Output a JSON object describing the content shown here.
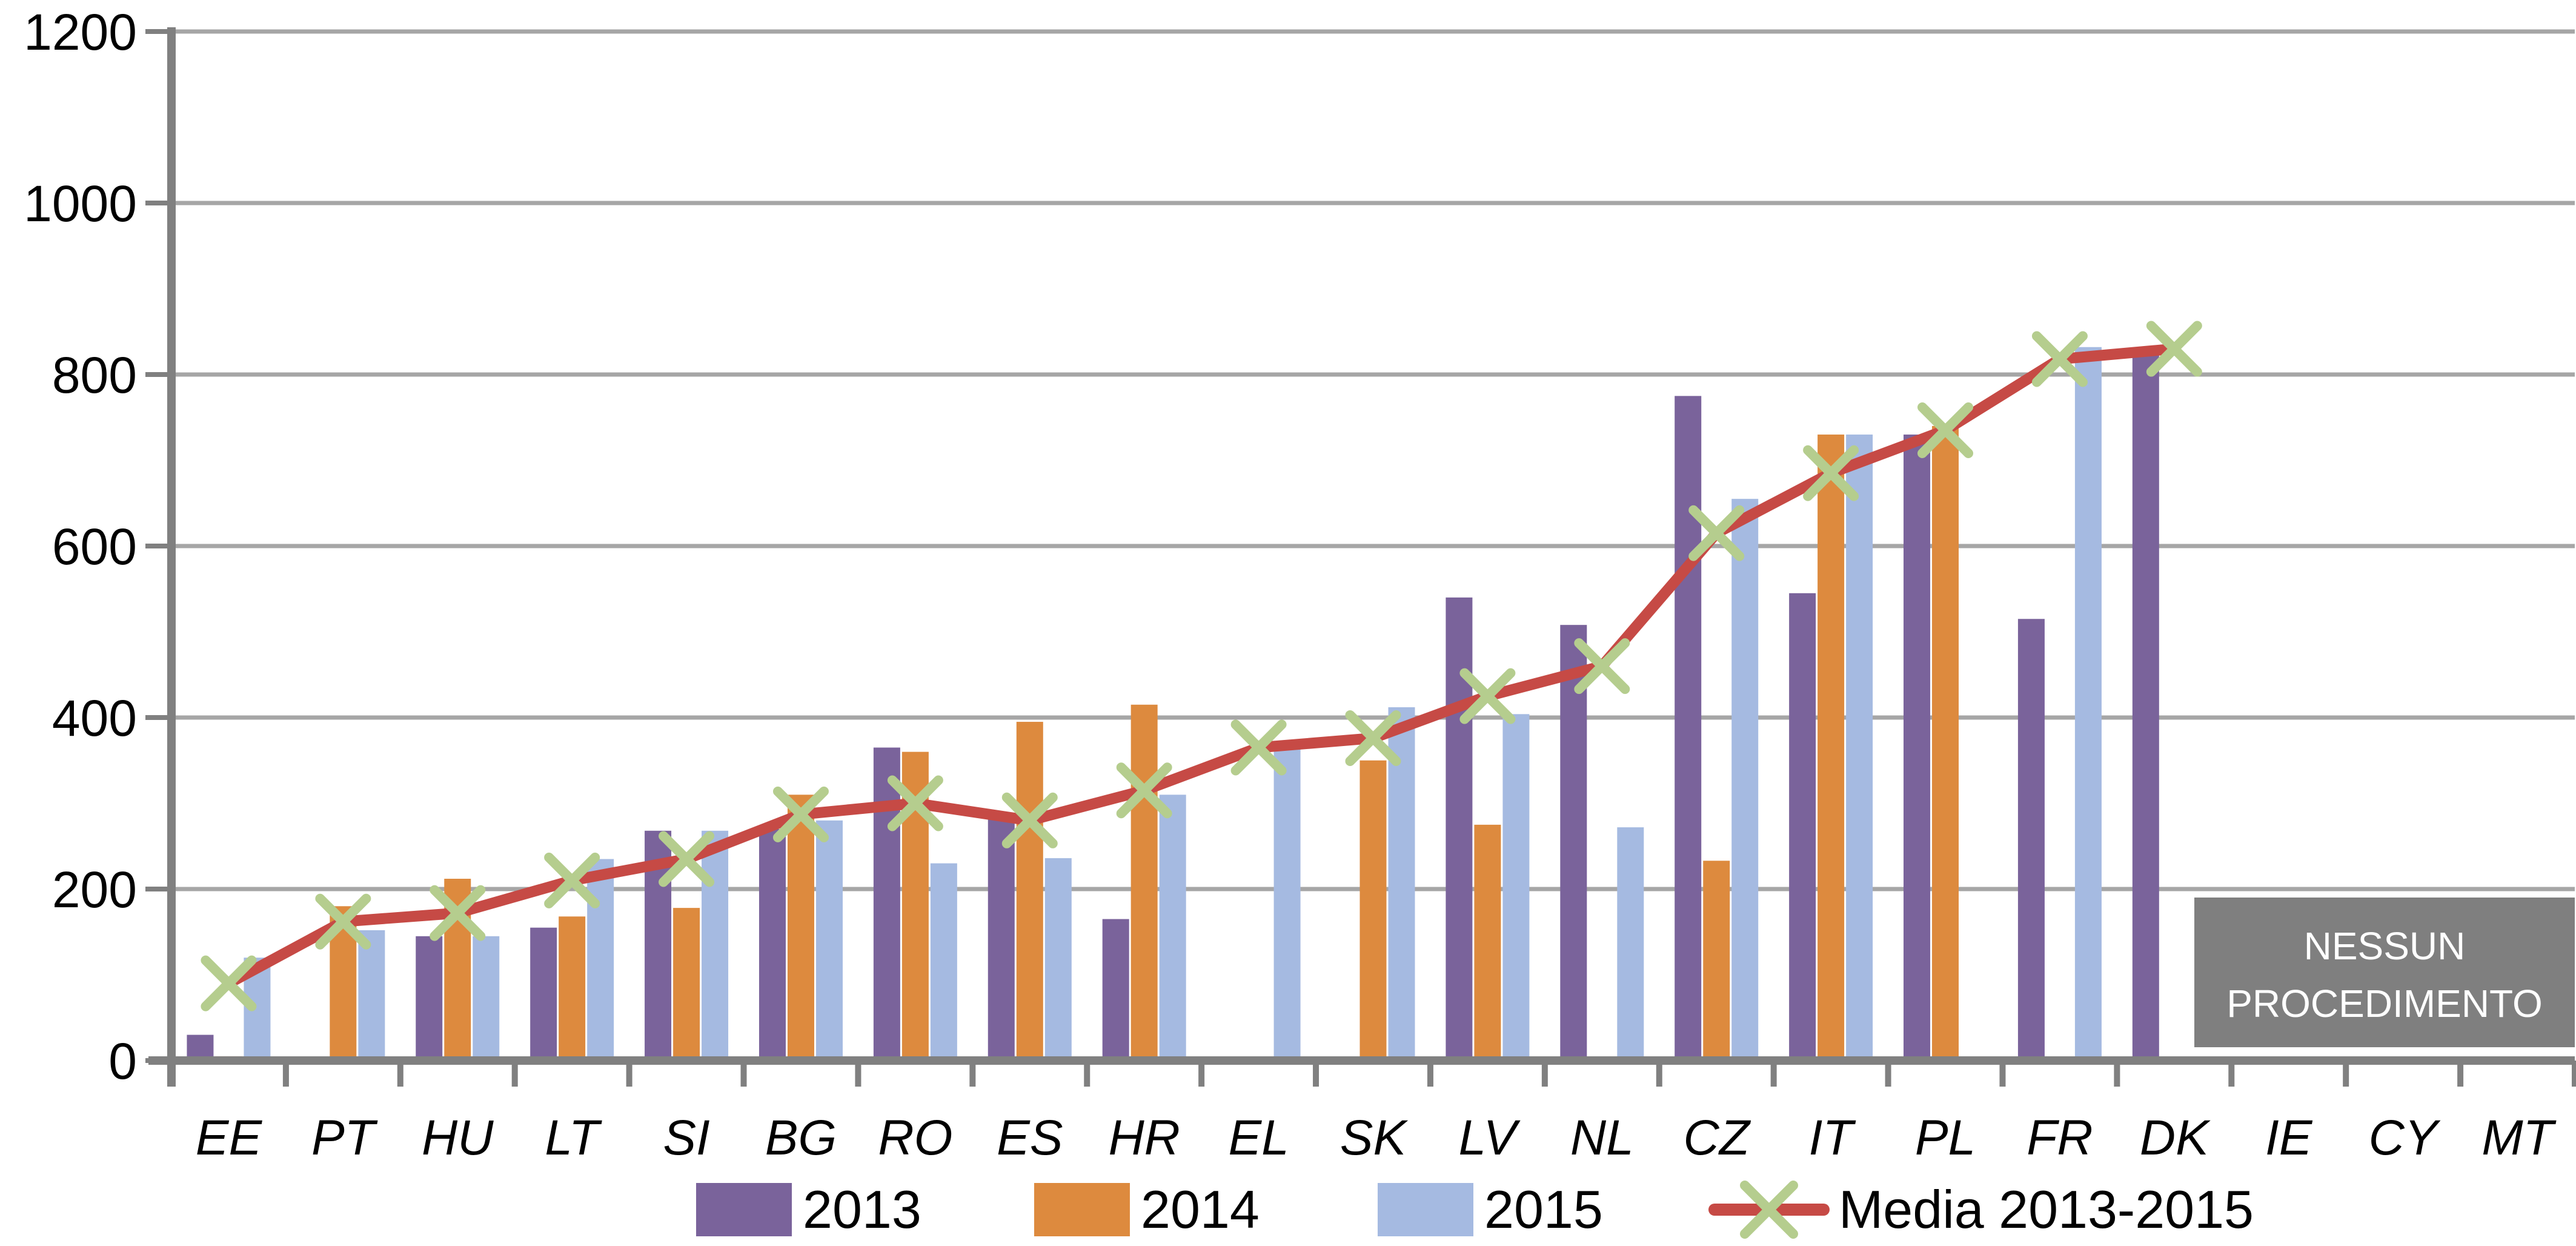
{
  "chart_data": {
    "type": "bar",
    "title": "",
    "xlabel": "",
    "ylabel": "",
    "ylim": [
      0,
      1200
    ],
    "yticks": [
      0,
      200,
      400,
      600,
      800,
      1000,
      1200
    ],
    "grid": "horizontal",
    "legend_position": "bottom",
    "categories": [
      "EE",
      "PT",
      "HU",
      "LT",
      "SI",
      "BG",
      "RO",
      "ES",
      "HR",
      "EL",
      "SK",
      "LV",
      "NL",
      "CZ",
      "IT",
      "PL",
      "FR",
      "DK",
      "IE",
      "CY",
      "MT"
    ],
    "series": [
      {
        "name": "2013",
        "color": "#7A639B",
        "values": [
          30,
          null,
          145,
          155,
          268,
          270,
          365,
          283,
          165,
          null,
          null,
          540,
          508,
          775,
          545,
          730,
          515,
          828,
          null,
          null,
          null
        ]
      },
      {
        "name": "2014",
        "color": "#DD8A3E",
        "values": [
          5,
          180,
          212,
          168,
          178,
          310,
          360,
          395,
          415,
          null,
          350,
          275,
          null,
          233,
          730,
          740,
          null,
          null,
          null,
          null,
          null
        ]
      },
      {
        "name": "2015",
        "color": "#A5BAE1",
        "values": [
          120,
          152,
          145,
          235,
          268,
          280,
          230,
          236,
          310,
          365,
          412,
          404,
          272,
          655,
          730,
          null,
          832,
          null,
          null,
          null,
          null
        ]
      }
    ],
    "line_series": {
      "name": "Media 2013-2015",
      "line_color": "#C64A45",
      "marker": "x",
      "marker_color": "#B5CD8E",
      "values": [
        90,
        162,
        172,
        210,
        235,
        287,
        300,
        280,
        315,
        365,
        376,
        425,
        460,
        615,
        685,
        735,
        818,
        830,
        null,
        null,
        null
      ]
    },
    "annotation_box": {
      "line1": "NESSUN",
      "line2": "PROCEDIMENTO",
      "bg_color": "#7F7F7F",
      "text_color": "#FFFFFF",
      "covers": [
        "IE",
        "CY",
        "MT"
      ]
    },
    "axis_color": "#808080",
    "gridline_color": "#A6A6A6",
    "text_color": "#000000"
  }
}
